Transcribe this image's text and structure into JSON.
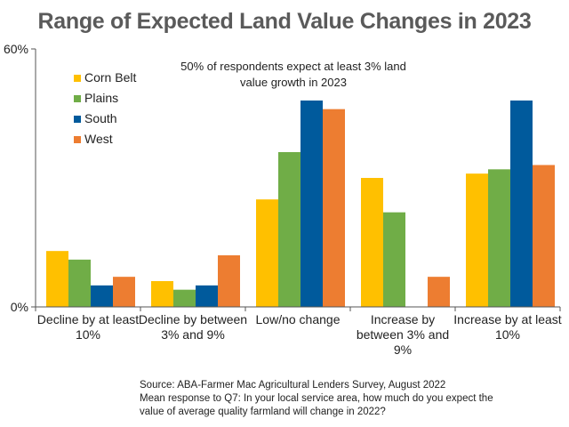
{
  "chart_data": {
    "type": "bar",
    "title": "Range of Expected Land Value Changes in 2023",
    "annotation": "50% of respondents expect at least 3% land value growth in 2023",
    "annotation_lines": [
      "50% of respondents expect at least 3% land",
      "value growth in 2023"
    ],
    "categories": [
      [
        "Decline by at least",
        "10%"
      ],
      [
        "Decline by between",
        "3% and 9%"
      ],
      [
        "Low/no change"
      ],
      [
        "Increase by",
        "between 3% and",
        "9%"
      ],
      [
        "Increase by at least",
        "10%"
      ]
    ],
    "series": [
      {
        "name": "Corn Belt",
        "color": "#FFC000",
        "values": [
          13,
          6,
          25,
          30,
          31
        ]
      },
      {
        "name": "Plains",
        "color": "#70AD47",
        "values": [
          11,
          4,
          36,
          22,
          32
        ]
      },
      {
        "name": "South",
        "color": "#005A9C",
        "values": [
          5,
          5,
          48,
          0,
          48
        ]
      },
      {
        "name": "West",
        "color": "#ED7D31",
        "values": [
          7,
          12,
          46,
          7,
          33
        ]
      }
    ],
    "ylim": [
      0,
      60
    ],
    "yticks": [
      "0%",
      "60%"
    ],
    "ytick_values": [
      0,
      60
    ],
    "xlabel": "",
    "ylabel": ""
  },
  "footer": {
    "source": "Source: ABA-Farmer Mac Agricultural Lenders Survey, August 2022",
    "note_lines": [
      "Mean response to Q7: In your local service area, how much do you expect the",
      "value of average quality farmland will change in 2022?"
    ]
  }
}
